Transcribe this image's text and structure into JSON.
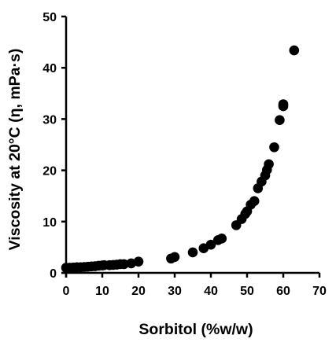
{
  "chart_data": {
    "type": "scatter",
    "title": "",
    "xlabel": "Sorbitol (%w/w)",
    "ylabel": "Viscosity at 20°C (η, mPa·s)",
    "xlim": [
      0,
      70
    ],
    "ylim": [
      0,
      50
    ],
    "x_ticks": [
      "0",
      "10",
      "20",
      "30",
      "40",
      "50",
      "60",
      "70"
    ],
    "y_ticks": [
      "0",
      "10",
      "20",
      "30",
      "40",
      "50"
    ],
    "grid": false,
    "legend": "none",
    "marker_color": "#000000",
    "series": [
      {
        "points": [
          [
            0,
            1.0
          ],
          [
            1,
            1.0
          ],
          [
            2,
            1.05
          ],
          [
            3,
            1.1
          ],
          [
            4,
            1.1
          ],
          [
            5,
            1.15
          ],
          [
            6,
            1.2
          ],
          [
            7,
            1.25
          ],
          [
            8,
            1.3
          ],
          [
            9,
            1.4
          ],
          [
            10,
            1.45
          ],
          [
            10.5,
            1.5
          ],
          [
            12,
            1.5
          ],
          [
            13,
            1.55
          ],
          [
            14,
            1.6
          ],
          [
            15,
            1.7
          ],
          [
            16,
            1.7
          ],
          [
            18,
            1.85
          ],
          [
            20,
            2.2
          ],
          [
            29,
            2.8
          ],
          [
            30,
            3.1
          ],
          [
            35,
            4.0
          ],
          [
            38,
            4.8
          ],
          [
            40,
            5.5
          ],
          [
            42,
            6.4
          ],
          [
            43,
            6.7
          ],
          [
            47,
            9.3
          ],
          [
            48.5,
            10.5
          ],
          [
            49.5,
            11.5
          ],
          [
            50,
            12.0
          ],
          [
            51,
            13.3
          ],
          [
            52,
            14.0
          ],
          [
            53,
            16.5
          ],
          [
            54,
            17.8
          ],
          [
            55,
            19.0
          ],
          [
            55.5,
            20.1
          ],
          [
            56,
            21.2
          ],
          [
            57.5,
            24.5
          ],
          [
            59,
            29.8
          ],
          [
            60,
            32.5
          ],
          [
            60,
            32.9
          ],
          [
            63,
            43.4
          ]
        ]
      }
    ]
  }
}
